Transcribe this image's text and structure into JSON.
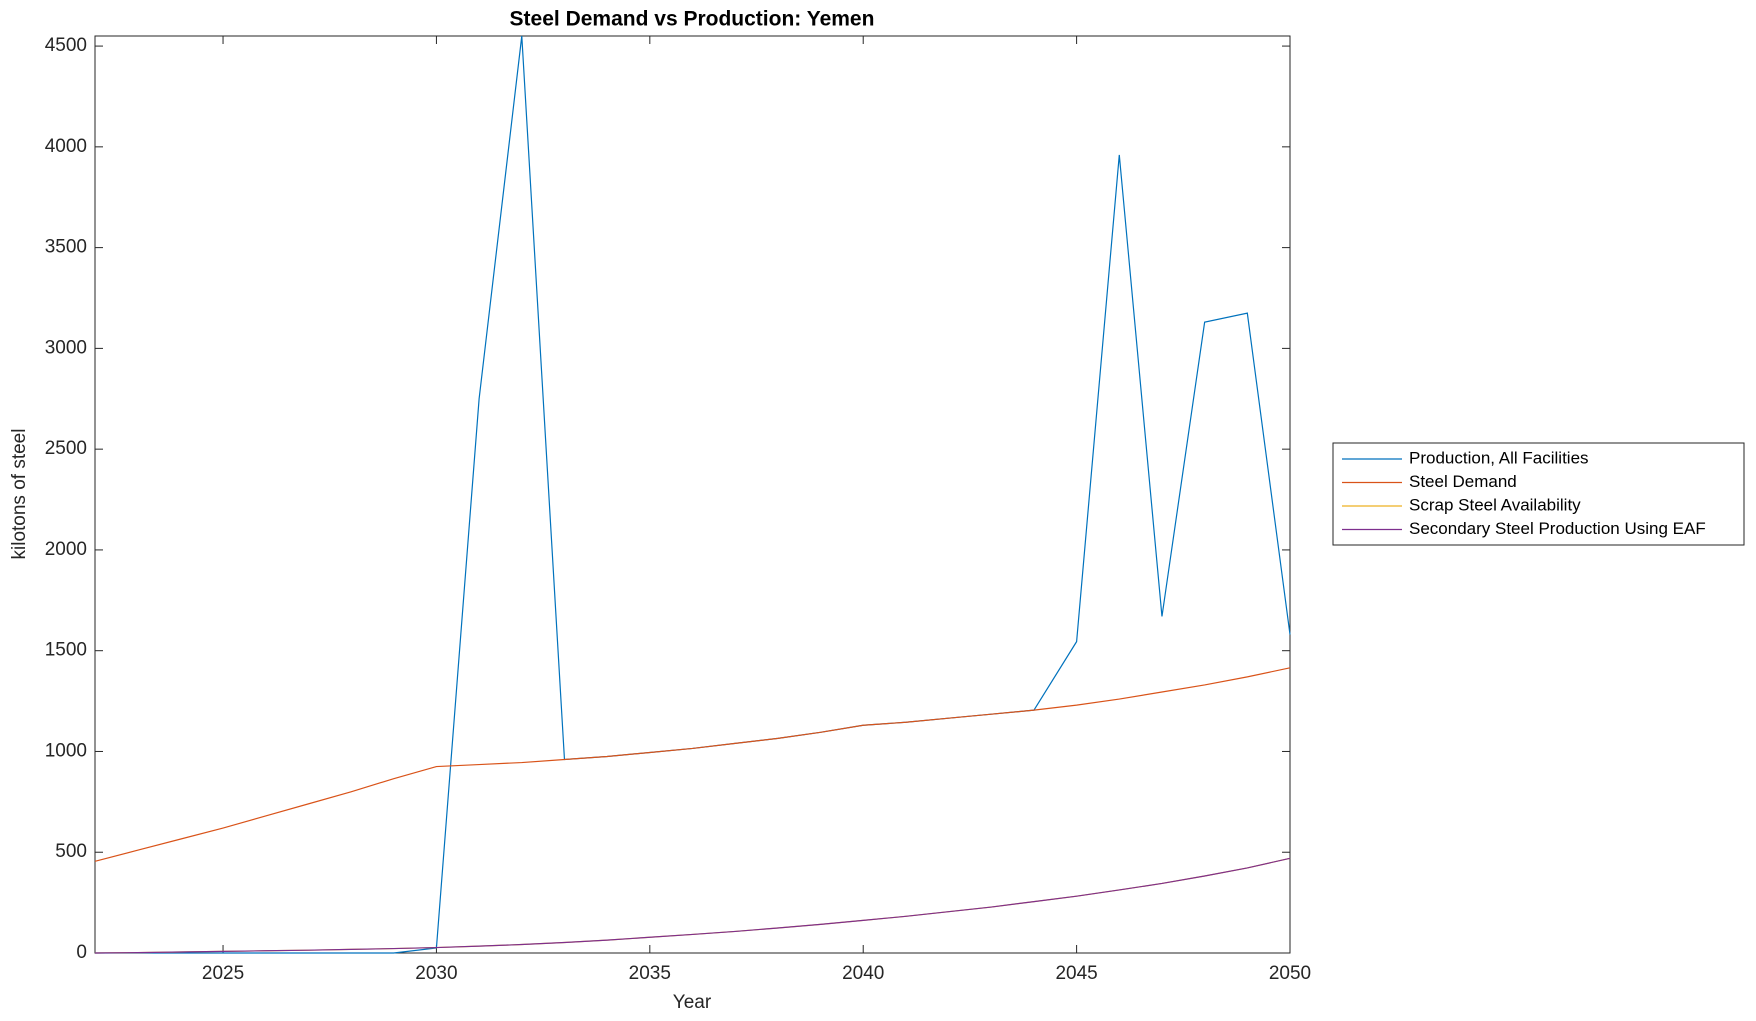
{
  "chart_data": {
    "type": "line",
    "title": "Steel Demand vs Production: Yemen",
    "x_label": "Year",
    "y_label": "kilotons of steel",
    "x": [
      2022,
      2023,
      2024,
      2025,
      2026,
      2027,
      2028,
      2029,
      2030,
      2031,
      2032,
      2033,
      2034,
      2035,
      2036,
      2037,
      2038,
      2039,
      2040,
      2041,
      2042,
      2043,
      2044,
      2045,
      2046,
      2047,
      2048,
      2049,
      2050
    ],
    "series": [
      {
        "name": "Production, All Facilities",
        "color": "#0072bd",
        "values": [
          0,
          0,
          0,
          0,
          0,
          0,
          0,
          0,
          25,
          2750,
          4550,
          960,
          975,
          995,
          1015,
          1040,
          1065,
          1095,
          1130,
          1145,
          1165,
          1185,
          1205,
          1545,
          3960,
          1670,
          3130,
          3175,
          1580
        ]
      },
      {
        "name": "Steel Demand",
        "color": "#d95319",
        "values": [
          455,
          510,
          565,
          620,
          680,
          740,
          800,
          865,
          925,
          935,
          945,
          960,
          975,
          995,
          1015,
          1040,
          1065,
          1095,
          1130,
          1145,
          1165,
          1185,
          1205,
          1230,
          1260,
          1295,
          1330,
          1370,
          1415
        ]
      },
      {
        "name": "Scrap Steel Availability",
        "color": "#edb120",
        "values": [
          0,
          2,
          5,
          8,
          11,
          14,
          18,
          22,
          27,
          34,
          42,
          52,
          64,
          78,
          92,
          107,
          124,
          142,
          162,
          182,
          205,
          228,
          255,
          282,
          313,
          345,
          382,
          422,
          470
        ]
      },
      {
        "name": "Secondary Steel Production Using EAF",
        "color": "#7e2f8e",
        "values": [
          0,
          2,
          5,
          8,
          11,
          14,
          18,
          22,
          27,
          34,
          42,
          52,
          64,
          78,
          92,
          107,
          124,
          142,
          162,
          182,
          205,
          228,
          255,
          282,
          313,
          345,
          382,
          422,
          470
        ]
      }
    ],
    "xlim": [
      2022,
      2050
    ],
    "xticks": [
      2025,
      2030,
      2035,
      2040,
      2045,
      2050
    ],
    "ylim": [
      0,
      4550
    ],
    "yticks": [
      0,
      500,
      1000,
      1500,
      2000,
      2500,
      3000,
      3500,
      4000,
      4500
    ],
    "grid": false,
    "legend_position": "right"
  }
}
